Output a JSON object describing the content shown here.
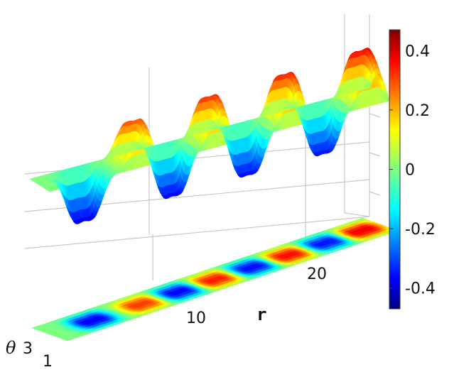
{
  "chart_data": {
    "type": "surface",
    "title": "",
    "xlabel": "r",
    "ylabel": "θ",
    "zlabel": "",
    "x_ticks": [
      "10",
      "20"
    ],
    "y_ticks": [
      "1",
      "3"
    ],
    "xlim": [
      0,
      27
    ],
    "ylim": [
      0,
      4
    ],
    "colorbar": {
      "colormap": "jet",
      "range": [
        -0.47,
        0.47
      ],
      "ticks": [
        {
          "value": 0.4,
          "label": "0.4"
        },
        {
          "value": 0.2,
          "label": "0.2"
        },
        {
          "value": 0,
          "label": "0"
        },
        {
          "value": -0.2,
          "label": "-0.2"
        },
        {
          "value": -0.4,
          "label": "-0.4"
        }
      ]
    },
    "surface": {
      "description_of_shape": "oscillating ridge along r with double-peaked maxima and troughs",
      "peaks": [
        {
          "r": 7.5,
          "z": 0.38
        },
        {
          "r": 13.5,
          "z": 0.42
        },
        {
          "r": 19.5,
          "z": 0.44
        },
        {
          "r": 25.5,
          "z": 0.47
        }
      ],
      "troughs": [
        {
          "r": 3.5,
          "z": -0.46
        },
        {
          "r": 10.5,
          "z": -0.45
        },
        {
          "r": 16.5,
          "z": -0.44
        },
        {
          "r": 22.5,
          "z": -0.43
        }
      ]
    },
    "projection": "contour map of surface on the floor plane",
    "grid": true,
    "legend": "colorbar-right"
  }
}
